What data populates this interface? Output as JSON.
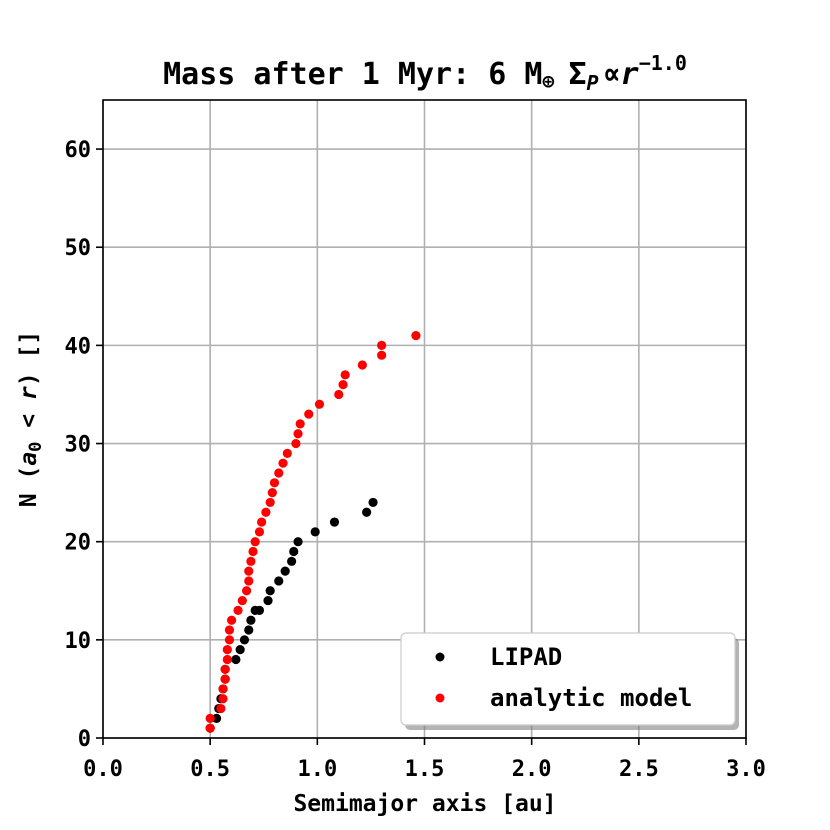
{
  "chart_data": {
    "type": "scatter",
    "title": "Mass after 1 Myr: 6 M",
    "title_symbol": "⊕",
    "title_sigma": "Σ",
    "title_sigma_sub": "P",
    "title_prop": "∝",
    "title_r": "r",
    "title_exponent": "−1.0",
    "xlabel": "Semimajor axis [au]",
    "ylabel_prefix": "N (",
    "ylabel_a": "a",
    "ylabel_a_sub": "0",
    "ylabel_lt": " < ",
    "ylabel_r": "r",
    "ylabel_suffix": ") []",
    "xlim": [
      0.0,
      3.0
    ],
    "ylim": [
      0,
      65
    ],
    "xticks": [
      "0.0",
      "0.5",
      "1.0",
      "1.5",
      "2.0",
      "2.5",
      "3.0"
    ],
    "yticks": [
      "0",
      "10",
      "20",
      "30",
      "40",
      "50",
      "60"
    ],
    "grid": true,
    "legend_position": "lower-right",
    "series": [
      {
        "name": "LIPAD",
        "color": "#000000",
        "x": [
          0.5,
          0.53,
          0.54,
          0.55,
          0.56,
          0.57,
          0.57,
          0.62,
          0.64,
          0.66,
          0.68,
          0.69,
          0.71,
          0.73,
          0.77,
          0.78,
          0.82,
          0.85,
          0.88,
          0.89,
          0.91,
          0.99,
          1.08,
          1.23,
          1.26
        ],
        "y": [
          1,
          2,
          3,
          4,
          5,
          6,
          7,
          8,
          9,
          10,
          11,
          12,
          13,
          13,
          14,
          15,
          16,
          17,
          18,
          19,
          20,
          21,
          22,
          23,
          24
        ]
      },
      {
        "name": "analytic model",
        "color": "#ff0000",
        "x": [
          0.5,
          0.5,
          0.55,
          0.56,
          0.56,
          0.57,
          0.57,
          0.58,
          0.58,
          0.59,
          0.59,
          0.6,
          0.63,
          0.65,
          0.67,
          0.68,
          0.68,
          0.69,
          0.7,
          0.71,
          0.73,
          0.74,
          0.76,
          0.78,
          0.79,
          0.8,
          0.82,
          0.84,
          0.86,
          0.9,
          0.91,
          0.92,
          0.96,
          1.01,
          1.1,
          1.12,
          1.13,
          1.21,
          1.3,
          1.3,
          1.46
        ],
        "y": [
          1,
          2,
          3,
          4,
          5,
          6,
          7,
          8,
          9,
          10,
          11,
          12,
          13,
          14,
          15,
          16,
          17,
          18,
          19,
          20,
          21,
          22,
          23,
          24,
          25,
          26,
          27,
          28,
          29,
          30,
          31,
          32,
          33,
          34,
          35,
          36,
          37,
          38,
          39,
          40,
          41
        ]
      }
    ]
  }
}
